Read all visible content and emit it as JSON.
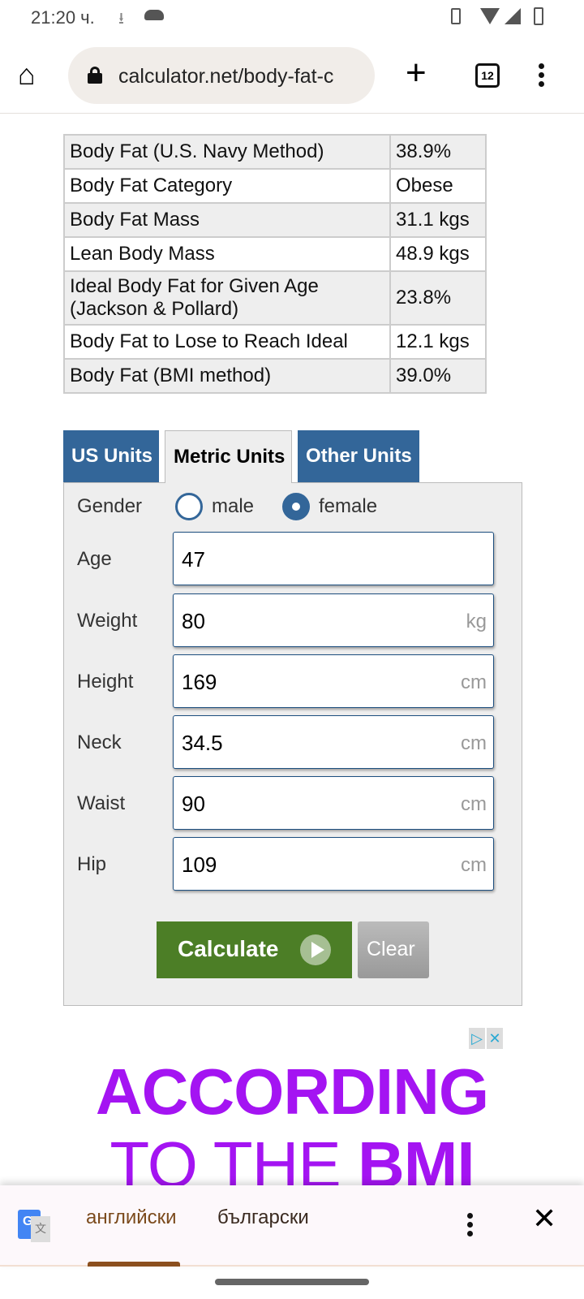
{
  "status_bar": {
    "time": "21:20 ч."
  },
  "browser": {
    "url": "calculator.net/body-fat-c",
    "tab_count": "12"
  },
  "results": [
    {
      "label": "Body Fat (U.S. Navy Method)",
      "value": "38.9%"
    },
    {
      "label": "Body Fat Category",
      "value": "Obese"
    },
    {
      "label": "Body Fat Mass",
      "value": "31.1 kgs"
    },
    {
      "label": "Lean Body Mass",
      "value": "48.9 kgs"
    },
    {
      "label": "Ideal Body Fat for Given Age (Jackson & Pollard)",
      "value": "23.8%"
    },
    {
      "label": "Body Fat to Lose to Reach Ideal",
      "value": "12.1 kgs"
    },
    {
      "label": "Body Fat (BMI method)",
      "value": "39.0%"
    }
  ],
  "unit_tabs": [
    {
      "label": "US Units"
    },
    {
      "label": "Metric Units",
      "active": true
    },
    {
      "label": "Other Units"
    }
  ],
  "form": {
    "gender_label": "Gender",
    "male": "male",
    "female": "female",
    "gender_selected": "female",
    "fields": [
      {
        "label": "Age",
        "value": "47",
        "unit": ""
      },
      {
        "label": "Weight",
        "value": "80",
        "unit": "kg"
      },
      {
        "label": "Height",
        "value": "169",
        "unit": "cm"
      },
      {
        "label": "Neck",
        "value": "34.5",
        "unit": "cm"
      },
      {
        "label": "Waist",
        "value": "90",
        "unit": "cm"
      },
      {
        "label": "Hip",
        "value": "109",
        "unit": "cm"
      }
    ],
    "calculate": "Calculate",
    "clear": "Clear"
  },
  "ad": {
    "line1": "ACCORDING",
    "line2": "TO THE ",
    "line2_bold": "BMI"
  },
  "translate": {
    "source": "английски",
    "target": "български"
  },
  "colors": {
    "tab_blue": "#336699",
    "calc_green": "#4c7e26",
    "ad_purple": "#a414f2"
  }
}
